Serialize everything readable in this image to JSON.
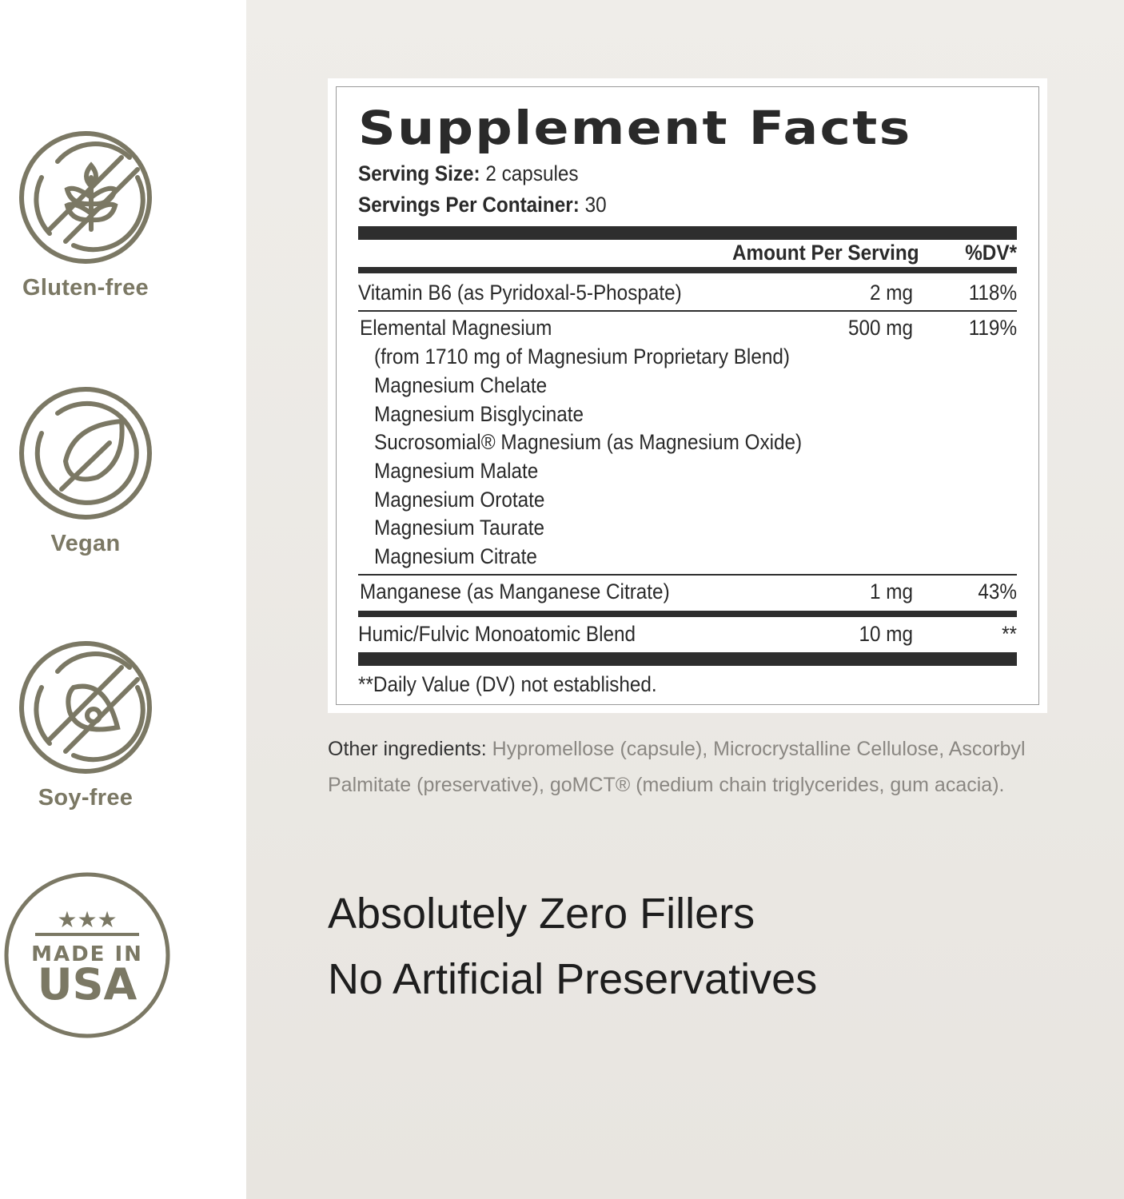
{
  "badges": [
    {
      "label": "Gluten-free",
      "icon": "no-wheat-icon"
    },
    {
      "label": "Vegan",
      "icon": "leaf-icon"
    },
    {
      "label": "Soy-free",
      "icon": "no-soy-icon"
    },
    {
      "label": "USA",
      "icon": "made-in-usa-seal",
      "seal_text": "MADE IN USA"
    }
  ],
  "colors": {
    "icon": "#7b7864",
    "bars": "#2e2e2e"
  },
  "facts": {
    "title": "Supplement Facts",
    "serving_size_label": "Serving Size:",
    "serving_size": "2 capsules",
    "servings_label": "Servings Per Container:",
    "servings": "30",
    "col_amount": "Amount Per Serving",
    "col_dv": "%DV*",
    "rows": [
      {
        "name": "Vitamin B6 (as Pyridoxal-5-Phospate)",
        "amount": "2 mg",
        "dv": "118%"
      },
      {
        "name": "Elemental Magnesium",
        "amount": "500 mg",
        "dv": "119%"
      },
      {
        "name": "Manganese (as Manganese Citrate)",
        "amount": "1 mg",
        "dv": "43%"
      },
      {
        "name": "Humic/Fulvic Monoatomic Blend",
        "amount": "10 mg",
        "dv": "**"
      }
    ],
    "sub": [
      "(from 1710 mg of Magnesium Proprietary Blend)",
      "Magnesium Chelate",
      "Magnesium Bisglycinate",
      "Sucrosomial® Magnesium (as Magnesium Oxide)",
      "Magnesium Malate",
      "Magnesium Orotate",
      "Magnesium Taurate",
      "Magnesium Citrate"
    ],
    "footnote": "**Daily Value (DV) not established."
  },
  "other": {
    "label": "Other ingredients:",
    "text": "Hypromellose (capsule), Microcrystalline Cellulose, Ascorbyl Palmitate (preservative), goMCT® (medium chain triglycerides, gum acacia)."
  },
  "claims": [
    "Absolutely Zero Fillers",
    "No Artificial Preservatives"
  ]
}
